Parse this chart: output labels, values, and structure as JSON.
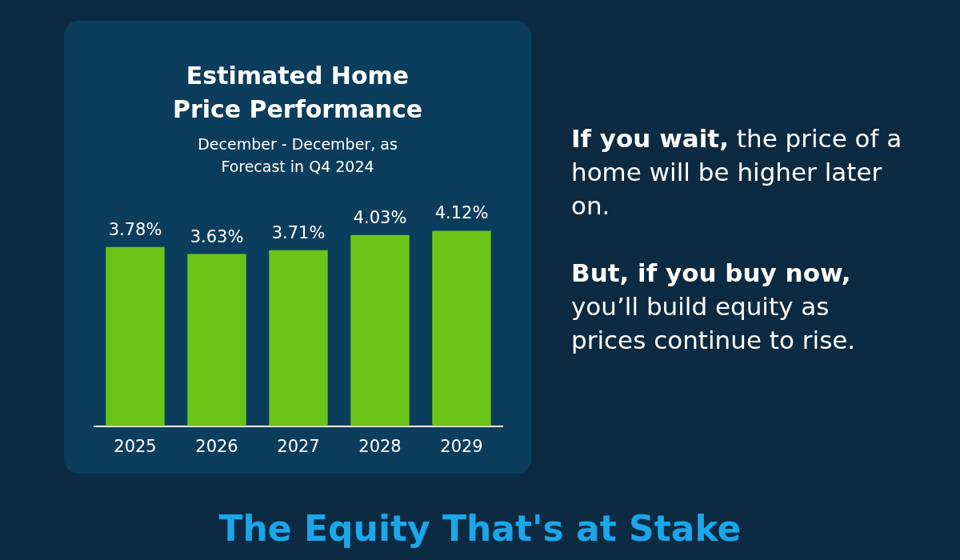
{
  "chart_data": {
    "type": "bar",
    "title": "Estimated Home Price Performance",
    "subtitle": "December - December, as Forecast in Q4 2024",
    "categories": [
      "2025",
      "2026",
      "2027",
      "2028",
      "2029"
    ],
    "values": [
      3.78,
      3.63,
      3.71,
      4.03,
      4.12
    ],
    "value_labels": [
      "3.78%",
      "3.63%",
      "3.71%",
      "4.03%",
      "4.12%"
    ],
    "color": "#6cc418",
    "grid": false,
    "legend": false,
    "annotations": [
      "If you wait,",
      "the price of a home will be higher later on.",
      "But, if you buy now,",
      "you’ll build equity as prices continue to rise.",
      "The Equity That's at Stake"
    ]
  }
}
